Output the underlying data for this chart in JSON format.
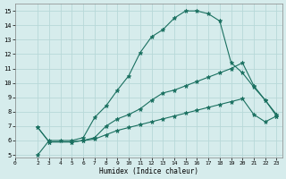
{
  "title": "",
  "xlabel": "Humidex (Indice chaleur)",
  "bg_color": "#d6ecec",
  "grid_color": "#b8d8d8",
  "line_color": "#1a7060",
  "xlim": [
    0,
    23.5
  ],
  "ylim": [
    4.8,
    15.5
  ],
  "yticks": [
    5,
    6,
    7,
    8,
    9,
    10,
    11,
    12,
    13,
    14,
    15
  ],
  "xticks": [
    0,
    2,
    3,
    4,
    5,
    6,
    7,
    8,
    9,
    10,
    11,
    12,
    13,
    14,
    15,
    16,
    17,
    18,
    19,
    20,
    21,
    22,
    23
  ],
  "line1_x": [
    2,
    3,
    4,
    5,
    6,
    7,
    8,
    9,
    10,
    11,
    12,
    13,
    14,
    15,
    16,
    17,
    18,
    19,
    20,
    21,
    22,
    23
  ],
  "line1_y": [
    5.0,
    6.0,
    6.0,
    6.0,
    6.2,
    7.6,
    8.4,
    9.5,
    10.5,
    12.1,
    13.2,
    13.7,
    14.5,
    15.0,
    15.0,
    14.8,
    14.3,
    11.4,
    10.7,
    9.7,
    8.8,
    7.7
  ],
  "line2_x": [
    2,
    3,
    5,
    6,
    7,
    8,
    9,
    10,
    11,
    12,
    13,
    14,
    15,
    16,
    17,
    18,
    19,
    20,
    21,
    22,
    23
  ],
  "line2_y": [
    6.9,
    5.9,
    5.9,
    6.0,
    6.2,
    7.0,
    7.5,
    7.8,
    8.2,
    8.8,
    9.3,
    9.5,
    9.8,
    10.1,
    10.4,
    10.7,
    11.0,
    11.4,
    9.8,
    8.8,
    7.8
  ],
  "line3_x": [
    2,
    3,
    5,
    6,
    7,
    8,
    9,
    10,
    11,
    12,
    13,
    14,
    15,
    16,
    17,
    18,
    19,
    20,
    21,
    22,
    23
  ],
  "line3_y": [
    6.9,
    5.9,
    5.9,
    6.0,
    6.1,
    6.4,
    6.7,
    6.9,
    7.1,
    7.3,
    7.5,
    7.7,
    7.9,
    8.1,
    8.3,
    8.5,
    8.7,
    8.9,
    7.8,
    7.3,
    7.7
  ],
  "markersize": 2.5,
  "linewidth": 0.8
}
